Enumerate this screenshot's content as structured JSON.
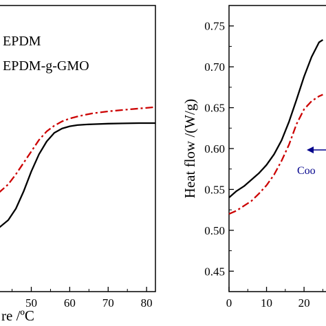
{
  "chart_data": [
    {
      "type": "line",
      "xlabel": "re /ºC",
      "xticks": [
        "50",
        "60",
        "70",
        "80"
      ],
      "xlim": [
        41.5,
        82.3
      ],
      "ylim": [
        0,
        1
      ],
      "legend": {
        "placement": "top-left",
        "entries": [
          "EPDM",
          "EPDM-g-GMO"
        ]
      },
      "series": [
        {
          "name": "EPDM",
          "style": "solid",
          "color": "#000000",
          "x": [
            41.5,
            44,
            46,
            48,
            50,
            52,
            54,
            56,
            58,
            60,
            62,
            64,
            66,
            70,
            74,
            78,
            82.3
          ],
          "y": [
            0.222,
            0.25,
            0.29,
            0.35,
            0.42,
            0.48,
            0.525,
            0.555,
            0.57,
            0.578,
            0.582,
            0.584,
            0.585,
            0.587,
            0.588,
            0.589,
            0.589
          ]
        },
        {
          "name": "EPDM-g-GMO",
          "style": "dash-dot",
          "color": "#cc0000",
          "x": [
            41.5,
            44,
            46,
            48,
            50,
            52,
            54,
            56,
            58,
            60,
            62,
            64,
            66,
            70,
            74,
            78,
            82.3
          ],
          "y": [
            0.345,
            0.375,
            0.41,
            0.45,
            0.49,
            0.53,
            0.56,
            0.58,
            0.595,
            0.605,
            0.612,
            0.618,
            0.623,
            0.63,
            0.635,
            0.64,
            0.645
          ]
        }
      ]
    },
    {
      "type": "line",
      "ylabel": "Heat flow /(W/g)",
      "xticks": [
        "0",
        "10",
        "20"
      ],
      "yticks": [
        "0.45",
        "0.50",
        "0.55",
        "0.60",
        "0.65",
        "0.70",
        "0.75"
      ],
      "xlim": [
        0,
        27.5
      ],
      "ylim": [
        0.425,
        0.775
      ],
      "annotation": {
        "text": "Coo",
        "arrow": "left",
        "color": "#00008b"
      },
      "series": [
        {
          "name": "",
          "style": "solid",
          "color": "#000000",
          "x": [
            0,
            2,
            4,
            6,
            8,
            10,
            12,
            14,
            16,
            18,
            20,
            22,
            24,
            25
          ],
          "y": [
            0.54,
            0.548,
            0.554,
            0.562,
            0.57,
            0.58,
            0.593,
            0.61,
            0.633,
            0.66,
            0.688,
            0.712,
            0.73,
            0.733
          ]
        },
        {
          "name": "",
          "style": "dash-dot",
          "color": "#cc0000",
          "x": [
            0,
            2,
            4,
            6,
            8,
            10,
            12,
            14,
            16,
            18,
            20,
            22,
            24,
            25
          ],
          "y": [
            0.52,
            0.524,
            0.53,
            0.536,
            0.545,
            0.555,
            0.568,
            0.585,
            0.605,
            0.63,
            0.648,
            0.658,
            0.664,
            0.666
          ]
        }
      ]
    }
  ]
}
